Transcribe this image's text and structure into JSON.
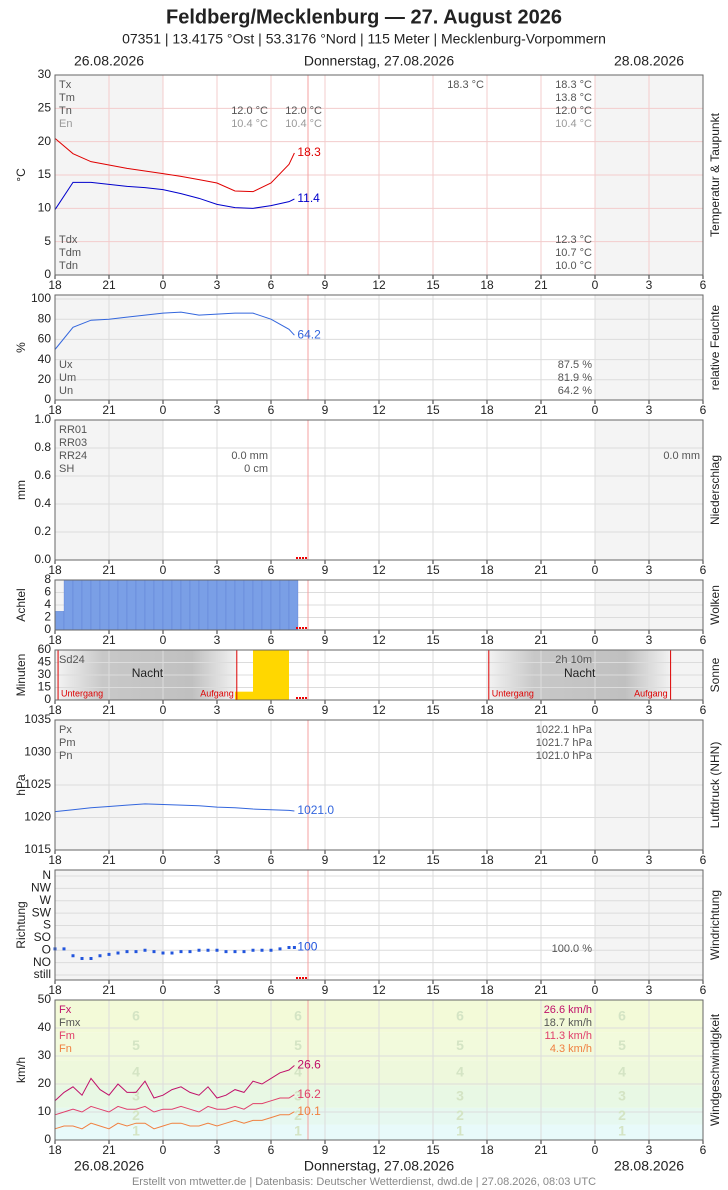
{
  "header": {
    "title": "Feldberg/Mecklenburg  —  27. August 2026",
    "subtitle": "07351  |  13.4175 °Ost  |  53.3176 °Nord  |  115 Meter  |  Mecklenburg-Vorpommern",
    "date_left": "26.08.2026",
    "date_center": "Donnerstag, 27.08.2026",
    "date_right": "28.08.2026"
  },
  "footer": "Erstellt von mtwetter.de | Datenbasis: Deutscher Wetterdienst, dwd.de | 27.08.2026, 08:03 UTC",
  "xaxis": {
    "xlim": [
      0,
      36
    ],
    "xticks": [
      {
        "value": 0,
        "label": "18"
      },
      {
        "value": 3,
        "label": "21"
      },
      {
        "value": 6,
        "label": "0"
      },
      {
        "value": 9,
        "label": "3"
      },
      {
        "value": 12,
        "label": "6"
      },
      {
        "value": 15,
        "label": "9"
      },
      {
        "value": 18,
        "label": "12"
      },
      {
        "value": 21,
        "label": "15"
      },
      {
        "value": 24,
        "label": "18"
      },
      {
        "value": 27,
        "label": "21"
      },
      {
        "value": 30,
        "label": "0"
      },
      {
        "value": 33,
        "label": "3"
      },
      {
        "value": 36,
        "label": "6"
      }
    ]
  },
  "chart_data": [
    {
      "type": "line",
      "title": "Temperatur & Taupunkt",
      "ylabel": "°C",
      "ylim": [
        0,
        30
      ],
      "yticks": [
        0,
        5,
        10,
        15,
        20,
        25,
        30
      ],
      "grid_color": "#f3cccc",
      "x": [
        0,
        1,
        2,
        3,
        4,
        5,
        6,
        7,
        8,
        9,
        10,
        11,
        12,
        13,
        13.3
      ],
      "series": [
        {
          "color": "#e00000",
          "values": [
            20.5,
            18.2,
            17.0,
            16.5,
            16.0,
            15.6,
            15.2,
            14.8,
            14.3,
            13.8,
            12.6,
            12.5,
            13.8,
            16.6,
            18.3
          ]
        },
        {
          "color": "#0000cc",
          "values": [
            9.8,
            13.9,
            13.9,
            13.6,
            13.3,
            13.1,
            12.8,
            12.2,
            11.5,
            10.6,
            10.1,
            10.0,
            10.4,
            11.0,
            11.4
          ]
        }
      ],
      "rows_top": [
        {
          "label": "Tx",
          "cells": [
            null,
            null,
            "18.3 °C",
            "18.3 °C"
          ]
        },
        {
          "label": "Tm",
          "cells": [
            null,
            null,
            null,
            "13.8 °C"
          ]
        },
        {
          "label": "Tn",
          "cells": [
            "12.0 °C",
            "12.0 °C",
            null,
            "12.0 °C"
          ]
        },
        {
          "label": "En",
          "cells": [
            "10.4 °C",
            "10.4 °C",
            null,
            "10.4 °C"
          ],
          "color": "#999"
        }
      ],
      "rows_bottom": [
        {
          "label": "Tdx",
          "cells": [
            null,
            null,
            null,
            "12.3 °C"
          ]
        },
        {
          "label": "Tdm",
          "cells": [
            null,
            null,
            null,
            "10.7 °C"
          ]
        },
        {
          "label": "Tdn",
          "cells": [
            null,
            null,
            null,
            "10.0 °C"
          ]
        }
      ]
    },
    {
      "type": "line",
      "title": "relative Feuchte",
      "ylabel": "%",
      "ylim": [
        0,
        100
      ],
      "yticks": [
        0,
        20,
        40,
        60,
        80,
        100
      ],
      "x": [
        0,
        1,
        2,
        3,
        4,
        5,
        6,
        7,
        8,
        9,
        10,
        11,
        12,
        13,
        13.3
      ],
      "series": [
        {
          "color": "#3366dd",
          "values": [
            50,
            72,
            79,
            80,
            82,
            84,
            86,
            87,
            84,
            85,
            86,
            86,
            80,
            70,
            64.2
          ]
        }
      ],
      "rows_bottom": [
        {
          "label": "Ux",
          "cells": [
            null,
            null,
            null,
            "87.5 %"
          ]
        },
        {
          "label": "Um",
          "cells": [
            null,
            null,
            null,
            "81.9 %"
          ]
        },
        {
          "label": "Un",
          "cells": [
            null,
            null,
            null,
            "64.2 %"
          ]
        }
      ]
    },
    {
      "type": "bar",
      "title": "Niederschlag",
      "ylabel": "mm",
      "ylim": [
        0,
        1
      ],
      "yticks": [
        {
          "value": 0,
          "label": "0.0"
        },
        0.2,
        0.4,
        0.6,
        0.8,
        {
          "value": 1,
          "label": "1.0"
        }
      ],
      "rows_top": [
        {
          "label": "RR01",
          "cells": []
        },
        {
          "label": "RR03",
          "cells": []
        },
        {
          "label": "RR24",
          "cells": [
            "0.0 mm",
            null,
            null,
            null,
            "0.0 mm"
          ]
        },
        {
          "label": "SH",
          "cells": [
            "0 cm"
          ]
        }
      ]
    },
    {
      "type": "histogram",
      "title": "Wolken",
      "ylabel": "Achtel",
      "ylim": [
        0,
        8
      ],
      "yticks": [
        0,
        2,
        4,
        6,
        8
      ],
      "color": "#7a9fe6",
      "bins": [
        0,
        0.5,
        1,
        1.5,
        2,
        2.5,
        3,
        3.5,
        4,
        4.5,
        5,
        5.5,
        6,
        6.5,
        7,
        7.5,
        8,
        8.5,
        9,
        9.5,
        10,
        10.5,
        11,
        11.5,
        12,
        12.5,
        13,
        13.5
      ],
      "counts": [
        3,
        8,
        8,
        8,
        8,
        8,
        8,
        8,
        8,
        8,
        8,
        8,
        8,
        8,
        8,
        8,
        8,
        8,
        8,
        8,
        8,
        8,
        8,
        8,
        8,
        8,
        8
      ]
    },
    {
      "type": "histogram",
      "title": "Sonne",
      "ylabel": "Minuten",
      "ylim": [
        0,
        60
      ],
      "yticks": [
        0,
        15,
        30,
        45,
        60
      ],
      "color": "#ffd700",
      "bins": [
        10,
        11,
        12,
        13
      ],
      "counts": [
        10,
        60,
        60
      ],
      "nights": [
        {
          "from": 0.17,
          "to": 10.1,
          "label": "Nacht",
          "start_label": "Untergang",
          "end_label": "Aufgang"
        },
        {
          "from": 24.1,
          "to": 34.2,
          "label": "Nacht",
          "start_label": "Untergang",
          "end_label": "Aufgang"
        }
      ],
      "rows_top": [
        {
          "label": "Sd24",
          "cells": [
            null,
            null,
            null,
            "2h 10m"
          ]
        }
      ]
    },
    {
      "type": "line",
      "title": "Luftdruck (NHN)",
      "ylabel": "hPa",
      "ylim": [
        1015,
        1035
      ],
      "yticks": [
        1015,
        1020,
        1025,
        1030,
        1035
      ],
      "x": [
        0,
        1,
        2,
        3,
        4,
        5,
        6,
        7,
        8,
        9,
        10,
        11,
        12,
        13,
        13.3
      ],
      "series": [
        {
          "color": "#3366dd",
          "values": [
            1020.9,
            1021.2,
            1021.5,
            1021.7,
            1021.9,
            1022.1,
            1022.0,
            1021.9,
            1021.8,
            1021.6,
            1021.5,
            1021.3,
            1021.2,
            1021.1,
            1021.0
          ],
          "value_labels": [
            null,
            null,
            null,
            null,
            null,
            null,
            null,
            null,
            null,
            null,
            null,
            null,
            null,
            null,
            "1021.0"
          ]
        }
      ],
      "rows_top": [
        {
          "label": "Px",
          "cells": [
            null,
            null,
            null,
            "1022.1 hPa"
          ]
        },
        {
          "label": "Pm",
          "cells": [
            null,
            null,
            null,
            "1021.7 hPa"
          ]
        },
        {
          "label": "Pn",
          "cells": [
            null,
            null,
            null,
            "1021.0 hPa"
          ]
        }
      ]
    },
    {
      "type": "scatter",
      "title": "Windrichtung",
      "ylabel": "Richtung",
      "ylim": [
        0,
        360
      ],
      "yticks": [
        {
          "value": 0,
          "label": "still"
        },
        {
          "value": 45,
          "label": "NO"
        },
        {
          "value": 90,
          "label": "O"
        },
        {
          "value": 135,
          "label": "SO"
        },
        {
          "value": 180,
          "label": "S"
        },
        {
          "value": 225,
          "label": "SW"
        },
        {
          "value": 270,
          "label": "W"
        },
        {
          "value": 315,
          "label": "NW"
        },
        {
          "value": 360,
          "label": "N"
        }
      ],
      "x": [
        0,
        0.5,
        1,
        1.5,
        2,
        2.5,
        3,
        3.5,
        4,
        4.5,
        5,
        5.5,
        6,
        6.5,
        7,
        7.5,
        8,
        8.5,
        9,
        9.5,
        10,
        10.5,
        11,
        11.5,
        12,
        12.5,
        13,
        13.3
      ],
      "series": [
        {
          "color": "#2255dd",
          "values": [
            95,
            95,
            70,
            60,
            60,
            70,
            75,
            80,
            85,
            85,
            90,
            85,
            80,
            80,
            85,
            85,
            90,
            90,
            90,
            85,
            85,
            85,
            90,
            90,
            90,
            95,
            100,
            100
          ]
        }
      ],
      "summary": "100.0 %"
    },
    {
      "type": "line",
      "title": "Windgeschwindigkeit",
      "ylabel": "km/h",
      "ylim": [
        0,
        50
      ],
      "yticks": [
        0,
        10,
        20,
        30,
        40,
        50
      ],
      "beaufort": [
        {
          "label": "1",
          "from": 1,
          "to": 5,
          "color": "#e8fafa"
        },
        {
          "label": "2",
          "from": 6,
          "to": 11,
          "color": "#e6f8f0"
        },
        {
          "label": "3",
          "from": 12,
          "to": 19,
          "color": "#e8f8e4"
        },
        {
          "label": "4",
          "from": 20,
          "to": 28,
          "color": "#eef8dc"
        },
        {
          "label": "5",
          "from": 29,
          "to": 38,
          "color": "#f2fadc"
        },
        {
          "label": "6",
          "from": 39,
          "to": 49,
          "color": "#f3fad8"
        }
      ],
      "x": [
        0,
        0.5,
        1,
        1.5,
        2,
        2.5,
        3,
        3.5,
        4,
        4.5,
        5,
        5.5,
        6,
        6.5,
        7,
        7.5,
        8,
        8.5,
        9,
        9.5,
        10,
        10.5,
        11,
        11.5,
        12,
        12.5,
        13,
        13.3
      ],
      "series": [
        {
          "color": "#c0106a",
          "values": [
            14,
            17,
            19,
            16,
            22,
            18,
            16,
            20,
            17,
            17,
            21,
            15,
            16,
            18,
            19,
            17,
            16,
            19,
            15,
            16,
            18,
            17,
            21,
            20,
            22,
            24,
            25,
            26.6
          ]
        },
        {
          "color": "#e0406a",
          "values": [
            9,
            10,
            11,
            10,
            12,
            11,
            10,
            12,
            11,
            11,
            12,
            10,
            11,
            11,
            12,
            11,
            10,
            12,
            11,
            11,
            12,
            11,
            13,
            13,
            14,
            15,
            15,
            16.2
          ]
        },
        {
          "color": "#f08040",
          "values": [
            4,
            5,
            5,
            4,
            6,
            5,
            4,
            6,
            5,
            6,
            6,
            4,
            5,
            6,
            6,
            5,
            5,
            6,
            5,
            6,
            7,
            6,
            7,
            7,
            8,
            9,
            9,
            10.1
          ]
        }
      ],
      "rows_top": [
        {
          "label": "Fx",
          "cells": [
            null,
            null,
            null,
            "26.6 km/h"
          ],
          "color": "#c0106a"
        },
        {
          "label": "Fmx",
          "cells": [
            null,
            null,
            null,
            "18.7 km/h"
          ]
        },
        {
          "label": "Fm",
          "cells": [
            null,
            null,
            null,
            "11.3 km/h"
          ],
          "color": "#e0406a"
        },
        {
          "label": "Fn",
          "cells": [
            null,
            null,
            null,
            "4.3 km/h"
          ],
          "color": "#f08040"
        }
      ]
    }
  ]
}
